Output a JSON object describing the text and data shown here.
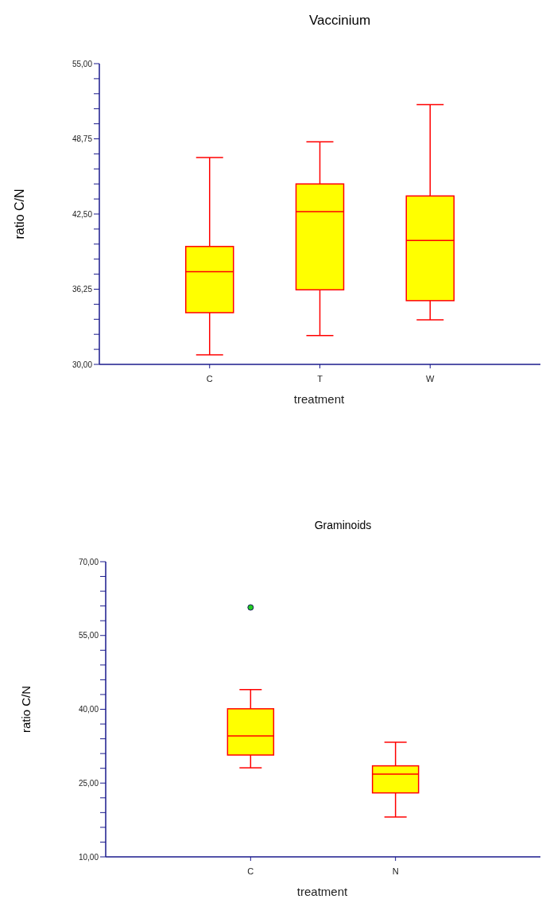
{
  "chart_data": [
    {
      "type": "box",
      "title": "Vaccinium",
      "xlabel": "treatment",
      "ylabel": "ratio C/N",
      "categories": [
        "C",
        "T",
        "W"
      ],
      "color": "#ffff00",
      "boxes": [
        {
          "low": 30.8,
          "q1": 34.3,
          "median": 37.7,
          "q3": 39.8,
          "high": 47.2
        },
        {
          "low": 32.4,
          "q1": 36.2,
          "median": 42.7,
          "q3": 45.0,
          "high": 48.5
        },
        {
          "low": 33.7,
          "q1": 35.3,
          "median": 40.3,
          "q3": 44.0,
          "high": 51.6
        }
      ],
      "ylim": [
        30,
        55
      ],
      "yticks": [
        {
          "value": 30,
          "label": "30,00"
        },
        {
          "value": 31.25,
          "label": null
        },
        {
          "value": 32.5,
          "label": null
        },
        {
          "value": 33.75,
          "label": null
        },
        {
          "value": 35,
          "label": null
        },
        {
          "value": 36.25,
          "label": "36,25"
        },
        {
          "value": 37.5,
          "label": null
        },
        {
          "value": 38.75,
          "label": null
        },
        {
          "value": 40,
          "label": null
        },
        {
          "value": 41.25,
          "label": null
        },
        {
          "value": 42.5,
          "label": "42,50"
        },
        {
          "value": 43.75,
          "label": null
        },
        {
          "value": 45,
          "label": null
        },
        {
          "value": 46.25,
          "label": null
        },
        {
          "value": 47.5,
          "label": null
        },
        {
          "value": 48.75,
          "label": "48,75"
        },
        {
          "value": 50,
          "label": null
        },
        {
          "value": 51.25,
          "label": null
        },
        {
          "value": 52.5,
          "label": null
        },
        {
          "value": 53.75,
          "label": null
        },
        {
          "value": 55,
          "label": "55,00"
        }
      ]
    },
    {
      "type": "box",
      "title": "Graminoids",
      "xlabel": "treatment",
      "ylabel": "ratio C/N",
      "categories": [
        "C",
        "N"
      ],
      "color": "#ffff00",
      "boxes": [
        {
          "low": 28.1,
          "q1": 30.7,
          "median": 34.6,
          "q3": 40.1,
          "high": 44.0,
          "outliers": [
            60.7
          ]
        },
        {
          "low": 18.1,
          "q1": 23.0,
          "median": 26.8,
          "q3": 28.5,
          "high": 33.3
        }
      ],
      "ylim": [
        10,
        70
      ],
      "yticks": [
        {
          "value": 10,
          "label": "10,00"
        },
        {
          "value": 13,
          "label": null
        },
        {
          "value": 16,
          "label": null
        },
        {
          "value": 19,
          "label": null
        },
        {
          "value": 22,
          "label": null
        },
        {
          "value": 25,
          "label": "25,00"
        },
        {
          "value": 28,
          "label": null
        },
        {
          "value": 31,
          "label": null
        },
        {
          "value": 34,
          "label": null
        },
        {
          "value": 37,
          "label": null
        },
        {
          "value": 40,
          "label": "40,00"
        },
        {
          "value": 43,
          "label": null
        },
        {
          "value": 46,
          "label": null
        },
        {
          "value": 49,
          "label": null
        },
        {
          "value": 52,
          "label": null
        },
        {
          "value": 55,
          "label": "55,00"
        },
        {
          "value": 58,
          "label": null
        },
        {
          "value": 61,
          "label": null
        },
        {
          "value": 64,
          "label": null
        },
        {
          "value": 67,
          "label": null
        },
        {
          "value": 70,
          "label": "70,00"
        }
      ]
    }
  ]
}
